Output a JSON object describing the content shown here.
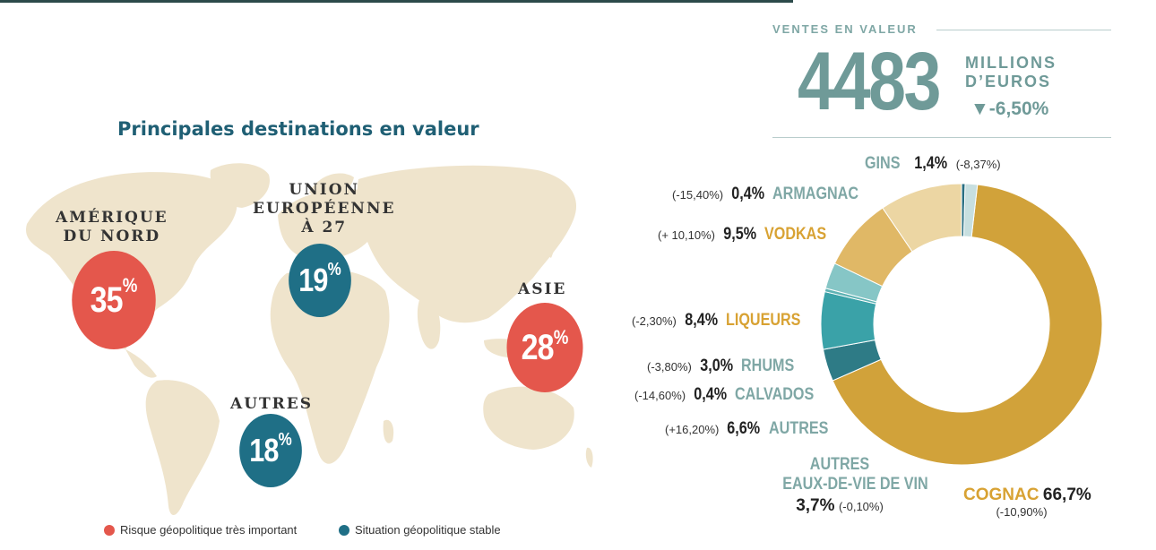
{
  "colors": {
    "risk": "#e4574c",
    "stable": "#1f6f86",
    "map_land": "#efe4cc",
    "teal_text": "#7fa7a5",
    "gold": "#d1a23a",
    "gold_text": "#d8a233",
    "teal_dark": "#2e7b86",
    "teal_mid": "#3aa2a8",
    "teal_light": "#86c6c6",
    "slice_light": "#c7dfe0"
  },
  "map": {
    "title": "Principales destinations en valeur",
    "regions": [
      {
        "name": "AMÉRIQUE\nDU NORD",
        "value": "35",
        "unit": "%",
        "status": "risk"
      },
      {
        "name": "UNION\nEUROPÉENNE\nÀ 27",
        "value": "19",
        "unit": "%",
        "status": "stable"
      },
      {
        "name": "ASIE",
        "value": "28",
        "unit": "%",
        "status": "risk"
      },
      {
        "name": "AUTRES",
        "value": "18",
        "unit": "%",
        "status": "stable"
      }
    ],
    "legend": [
      {
        "label": "Risque géopolitique très important",
        "status": "risk"
      },
      {
        "label": "Situation géopolitique stable",
        "status": "stable"
      }
    ]
  },
  "kpi": {
    "label": "VENTES EN VALEUR",
    "value": "4483",
    "unit_line1": "MILLIONS",
    "unit_line2": "D’EUROS",
    "change_arrow": "▼",
    "change": "-6,50%"
  },
  "chart_data": {
    "type": "pie",
    "donut": true,
    "slices": [
      {
        "name": "COGNAC",
        "value": 66.7,
        "value_label": "66,7%",
        "change": "(-10,90%)"
      },
      {
        "name": "AUTRES EAUX-DE-VIE DE VIN",
        "name_line1": "AUTRES",
        "name_line2": "EAUX-DE-VIE DE VIN",
        "value": 3.7,
        "value_label": "3,7%",
        "change": "(-0,10%)"
      },
      {
        "name": "AUTRES",
        "value": 6.6,
        "value_label": "6,6%",
        "change": "(+16,20%)"
      },
      {
        "name": "CALVADOS",
        "value": 0.4,
        "value_label": "0,4%",
        "change": "(-14,60%)"
      },
      {
        "name": "RHUMS",
        "value": 3.0,
        "value_label": "3,0%",
        "change": "(-3,80%)"
      },
      {
        "name": "LIQUEURS",
        "value": 8.4,
        "value_label": "8,4%",
        "change": "(-2,30%)"
      },
      {
        "name": "VODKAS",
        "value": 9.5,
        "value_label": "9,5%",
        "change": "(+ 10,10%)"
      },
      {
        "name": "ARMAGNAC",
        "value": 0.4,
        "value_label": "0,4%",
        "change": "(-15,40%)"
      },
      {
        "name": "GINS",
        "value": 1.4,
        "value_label": "1,4%",
        "change": "(-8,37%)"
      }
    ]
  }
}
